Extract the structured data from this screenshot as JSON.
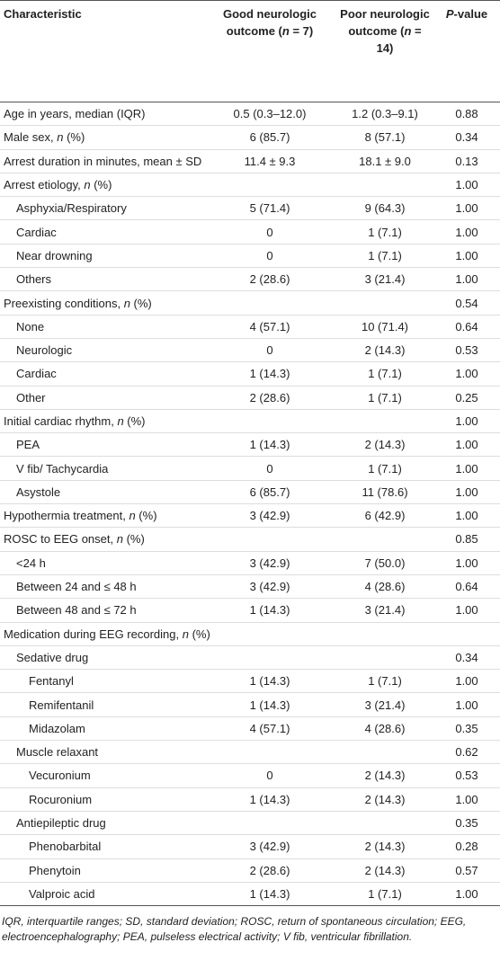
{
  "table": {
    "header": [
      "Characteristic",
      "Good neurologic outcome (n = 7)",
      "Poor neurologic outcome (n = 14)",
      "P-value"
    ],
    "rows": [
      {
        "label": "Age in years, median (IQR)",
        "good": "0.5 (0.3–12.0)",
        "poor": "1.2 (0.3–9.1)",
        "p": "0.88"
      },
      {
        "label": "Male sex, n (%)",
        "good": "6 (85.7)",
        "poor": "8 (57.1)",
        "p": "0.34"
      },
      {
        "label": "Arrest duration in minutes, mean ± SD",
        "good": "11.4 ± 9.3",
        "poor": "18.1 ± 9.0",
        "p": "0.13"
      },
      {
        "label": "Arrest etiology, n (%)",
        "p": "1.00",
        "rows": [
          {
            "label": "Asphyxia/Respiratory",
            "good": "5 (71.4)",
            "poor": "9 (64.3)",
            "p": "1.00"
          },
          {
            "label": "Cardiac",
            "good": "0",
            "poor": "1 (7.1)",
            "p": "1.00"
          },
          {
            "label": "Near drowning",
            "good": "0",
            "poor": "1 (7.1)",
            "p": "1.00"
          },
          {
            "label": "Others",
            "good": "2 (28.6)",
            "poor": "3 (21.4)",
            "p": "1.00"
          }
        ]
      },
      {
        "label": "Preexisting conditions, n (%)",
        "p": "0.54",
        "rows": [
          {
            "label": "None",
            "good": "4 (57.1)",
            "poor": "10 (71.4)",
            "p": "0.64"
          },
          {
            "label": "Neurologic",
            "good": "0",
            "poor": "2 (14.3)",
            "p": "0.53"
          },
          {
            "label": "Cardiac",
            "good": "1 (14.3)",
            "poor": "1 (7.1)",
            "p": "1.00"
          },
          {
            "label": "Other",
            "good": "2 (28.6)",
            "poor": "1 (7.1)",
            "p": "0.25"
          }
        ]
      },
      {
        "label": "Initial cardiac rhythm, n (%)",
        "p": "1.00",
        "rows": [
          {
            "label": "PEA",
            "good": "1 (14.3)",
            "poor": "2 (14.3)",
            "p": "1.00"
          },
          {
            "label": "V fib/ Tachycardia",
            "good": "0",
            "poor": "1 (7.1)",
            "p": "1.00"
          },
          {
            "label": "Asystole",
            "good": "6 (85.7)",
            "poor": "11 (78.6)",
            "p": "1.00"
          }
        ]
      },
      {
        "label": "Hypothermia treatment, n (%)",
        "good": "3 (42.9)",
        "poor": "6 (42.9)",
        "p": "1.00"
      },
      {
        "label": "ROSC to EEG onset, n (%)",
        "p": "0.85",
        "rows": [
          {
            "label": "<24 h",
            "good": "3 (42.9)",
            "poor": "7 (50.0)",
            "p": "1.00"
          },
          {
            "label": "Between 24 and ≤ 48 h",
            "good": "3 (42.9)",
            "poor": "4 (28.6)",
            "p": "0.64"
          },
          {
            "label": "Between 48 and ≤ 72 h",
            "good": "1 (14.3)",
            "poor": "3 (21.4)",
            "p": "1.00"
          }
        ]
      },
      {
        "label": "Medication during EEG recording, n (%)",
        "rows": [
          {
            "label": "Sedative drug",
            "p": "0.34",
            "rows": [
              {
                "label": "Fentanyl",
                "good": "1 (14.3)",
                "poor": "1 (7.1)",
                "p": "1.00"
              },
              {
                "label": "Remifentanil",
                "good": "1 (14.3)",
                "poor": "3 (21.4)",
                "p": "1.00"
              },
              {
                "label": "Midazolam",
                "good": "4 (57.1)",
                "poor": "4 (28.6)",
                "p": "0.35"
              }
            ]
          },
          {
            "label": "Muscle relaxant",
            "p": "0.62",
            "rows": [
              {
                "label": "Vecuronium",
                "good": "0",
                "poor": "2 (14.3)",
                "p": "0.53"
              },
              {
                "label": "Rocuronium",
                "good": "1 (14.3)",
                "poor": "2 (14.3)",
                "p": "1.00"
              }
            ]
          },
          {
            "label": "Antiepileptic drug",
            "p": "0.35",
            "rows": [
              {
                "label": "Phenobarbital",
                "good": "3 (42.9)",
                "poor": "2 (14.3)",
                "p": "0.28"
              },
              {
                "label": "Phenytoin",
                "good": "2 (28.6)",
                "poor": "2 (14.3)",
                "p": "0.57"
              },
              {
                "label": "Valproic acid",
                "good": "1 (14.3)",
                "poor": "1 (7.1)",
                "p": "1.00"
              }
            ]
          }
        ]
      }
    ],
    "footnote": "IQR, interquartile ranges; SD, standard deviation; ROSC, return of spontaneous circulation; EEG, electroencephalography; PEA, pulseless electrical activity; V fib, ventricular fibrillation."
  }
}
